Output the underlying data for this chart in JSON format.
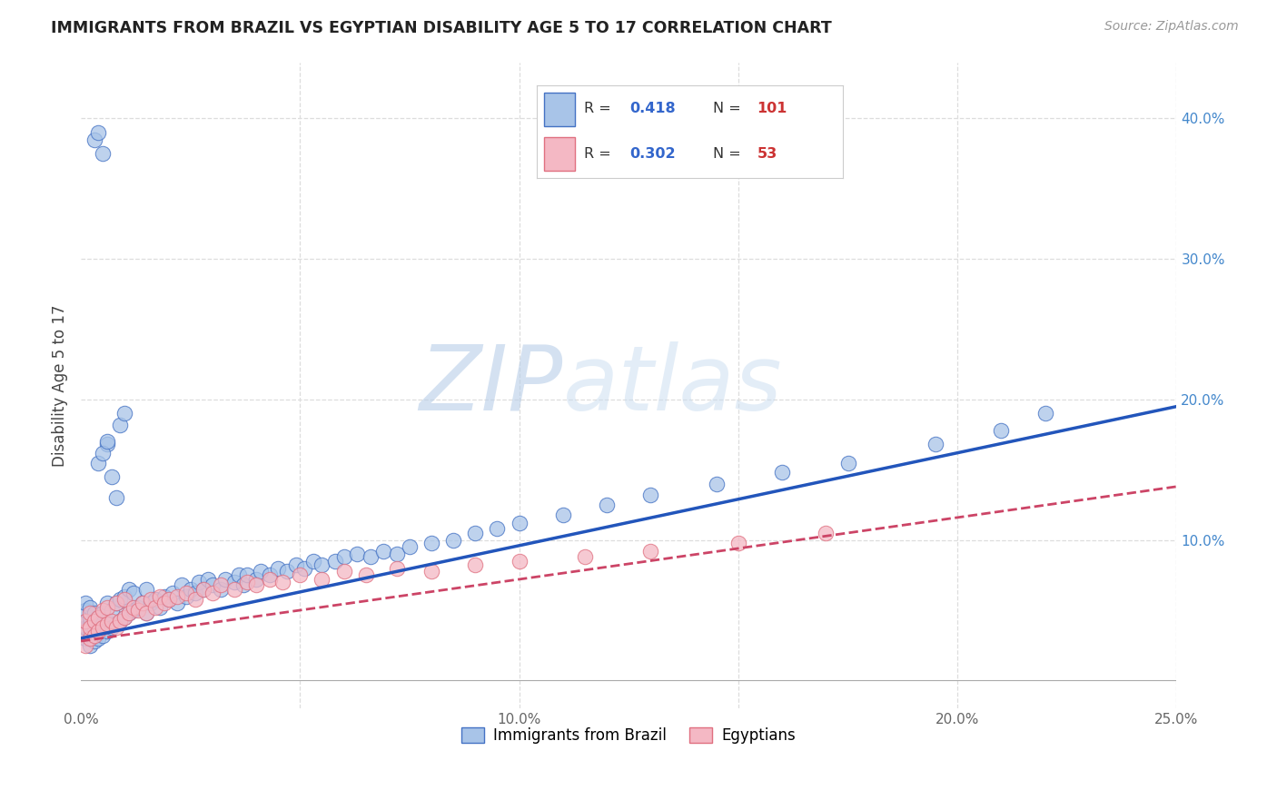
{
  "title": "IMMIGRANTS FROM BRAZIL VS EGYPTIAN DISABILITY AGE 5 TO 17 CORRELATION CHART",
  "source": "Source: ZipAtlas.com",
  "ylabel": "Disability Age 5 to 17",
  "xlim": [
    0.0,
    0.25
  ],
  "ylim": [
    -0.02,
    0.44
  ],
  "brazil_color": "#A8C4E8",
  "brazil_color_dark": "#4472C4",
  "egypt_color": "#F4B8C4",
  "egypt_color_dark": "#E07080",
  "brazil_R": 0.418,
  "brazil_N": 101,
  "egypt_R": 0.302,
  "egypt_N": 53,
  "watermark_zip": "ZIP",
  "watermark_atlas": "atlas",
  "background_color": "#ffffff",
  "grid_color": "#dddddd",
  "brazil_line_color": "#2255BB",
  "egypt_line_color": "#CC4466",
  "legend_text_color": "#333333",
  "r_value_color": "#3366CC",
  "n_value_color": "#CC3333",
  "ytick_color": "#4488CC",
  "brazil_scatter_x": [
    0.001,
    0.001,
    0.001,
    0.001,
    0.001,
    0.002,
    0.002,
    0.002,
    0.002,
    0.002,
    0.003,
    0.003,
    0.003,
    0.003,
    0.004,
    0.004,
    0.004,
    0.005,
    0.005,
    0.005,
    0.006,
    0.006,
    0.006,
    0.007,
    0.007,
    0.008,
    0.008,
    0.009,
    0.009,
    0.01,
    0.01,
    0.011,
    0.011,
    0.012,
    0.012,
    0.013,
    0.014,
    0.015,
    0.015,
    0.016,
    0.017,
    0.018,
    0.019,
    0.02,
    0.021,
    0.022,
    0.023,
    0.024,
    0.025,
    0.026,
    0.027,
    0.028,
    0.029,
    0.03,
    0.032,
    0.033,
    0.035,
    0.036,
    0.037,
    0.038,
    0.04,
    0.041,
    0.043,
    0.045,
    0.047,
    0.049,
    0.051,
    0.053,
    0.055,
    0.058,
    0.06,
    0.063,
    0.066,
    0.069,
    0.072,
    0.075,
    0.08,
    0.085,
    0.09,
    0.095,
    0.1,
    0.11,
    0.12,
    0.13,
    0.145,
    0.16,
    0.175,
    0.195,
    0.21,
    0.22,
    0.003,
    0.004,
    0.005,
    0.006,
    0.007,
    0.008,
    0.009,
    0.01,
    0.004,
    0.005,
    0.006
  ],
  "brazil_scatter_y": [
    0.03,
    0.038,
    0.042,
    0.05,
    0.055,
    0.025,
    0.032,
    0.04,
    0.045,
    0.052,
    0.028,
    0.035,
    0.042,
    0.048,
    0.03,
    0.038,
    0.045,
    0.032,
    0.04,
    0.048,
    0.035,
    0.042,
    0.055,
    0.038,
    0.05,
    0.04,
    0.055,
    0.042,
    0.058,
    0.045,
    0.06,
    0.048,
    0.065,
    0.05,
    0.062,
    0.052,
    0.055,
    0.048,
    0.065,
    0.055,
    0.058,
    0.052,
    0.06,
    0.058,
    0.062,
    0.055,
    0.068,
    0.06,
    0.065,
    0.062,
    0.07,
    0.065,
    0.072,
    0.068,
    0.065,
    0.072,
    0.07,
    0.075,
    0.068,
    0.075,
    0.072,
    0.078,
    0.075,
    0.08,
    0.078,
    0.082,
    0.08,
    0.085,
    0.082,
    0.085,
    0.088,
    0.09,
    0.088,
    0.092,
    0.09,
    0.095,
    0.098,
    0.1,
    0.105,
    0.108,
    0.112,
    0.118,
    0.125,
    0.132,
    0.14,
    0.148,
    0.155,
    0.168,
    0.178,
    0.19,
    0.385,
    0.39,
    0.375,
    0.168,
    0.145,
    0.13,
    0.182,
    0.19,
    0.155,
    0.162,
    0.17
  ],
  "egypt_scatter_x": [
    0.001,
    0.001,
    0.001,
    0.002,
    0.002,
    0.002,
    0.003,
    0.003,
    0.004,
    0.004,
    0.005,
    0.005,
    0.006,
    0.006,
    0.007,
    0.008,
    0.008,
    0.009,
    0.01,
    0.01,
    0.011,
    0.012,
    0.013,
    0.014,
    0.015,
    0.016,
    0.017,
    0.018,
    0.019,
    0.02,
    0.022,
    0.024,
    0.026,
    0.028,
    0.03,
    0.032,
    0.035,
    0.038,
    0.04,
    0.043,
    0.046,
    0.05,
    0.055,
    0.06,
    0.065,
    0.072,
    0.08,
    0.09,
    0.1,
    0.115,
    0.13,
    0.15,
    0.17
  ],
  "egypt_scatter_y": [
    0.025,
    0.035,
    0.042,
    0.03,
    0.038,
    0.048,
    0.032,
    0.042,
    0.035,
    0.045,
    0.038,
    0.05,
    0.04,
    0.052,
    0.042,
    0.038,
    0.055,
    0.042,
    0.045,
    0.058,
    0.048,
    0.052,
    0.05,
    0.055,
    0.048,
    0.058,
    0.052,
    0.06,
    0.055,
    0.058,
    0.06,
    0.062,
    0.058,
    0.065,
    0.062,
    0.068,
    0.065,
    0.07,
    0.068,
    0.072,
    0.07,
    0.075,
    0.072,
    0.078,
    0.075,
    0.08,
    0.078,
    0.082,
    0.085,
    0.088,
    0.092,
    0.098,
    0.105
  ],
  "brazil_trend_x": [
    0.0,
    0.25
  ],
  "brazil_trend_y": [
    0.03,
    0.195
  ],
  "egypt_trend_x": [
    0.0,
    0.25
  ],
  "egypt_trend_y": [
    0.028,
    0.138
  ]
}
